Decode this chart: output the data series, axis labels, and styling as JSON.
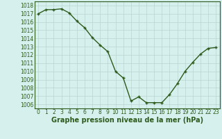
{
  "x": [
    0,
    1,
    2,
    3,
    4,
    5,
    6,
    7,
    8,
    9,
    10,
    11,
    12,
    13,
    14,
    15,
    16,
    17,
    18,
    19,
    20,
    21,
    22,
    23
  ],
  "y": [
    1017.0,
    1017.5,
    1017.5,
    1017.6,
    1017.1,
    1016.1,
    1015.3,
    1014.1,
    1013.2,
    1012.4,
    1010.0,
    1009.2,
    1006.4,
    1006.9,
    1006.2,
    1006.2,
    1006.2,
    1007.2,
    1008.5,
    1010.0,
    1011.1,
    1012.1,
    1012.8,
    1012.9
  ],
  "ylim": [
    1005.5,
    1018.5
  ],
  "yticks": [
    1006,
    1007,
    1008,
    1009,
    1010,
    1011,
    1012,
    1013,
    1014,
    1015,
    1016,
    1017,
    1018
  ],
  "xticks": [
    0,
    1,
    2,
    3,
    4,
    5,
    6,
    7,
    8,
    9,
    10,
    11,
    12,
    13,
    14,
    15,
    16,
    17,
    18,
    19,
    20,
    21,
    22,
    23
  ],
  "line_color": "#2d5a1b",
  "marker": "+",
  "marker_size": 3.5,
  "bg_color": "#d6f0ee",
  "grid_color": "#b8d4d0",
  "xlabel": "Graphe pression niveau de la mer (hPa)",
  "xlabel_fontsize": 7,
  "tick_fontsize": 5.5,
  "line_width": 1.0,
  "xlim_left": -0.5,
  "xlim_right": 23.5
}
